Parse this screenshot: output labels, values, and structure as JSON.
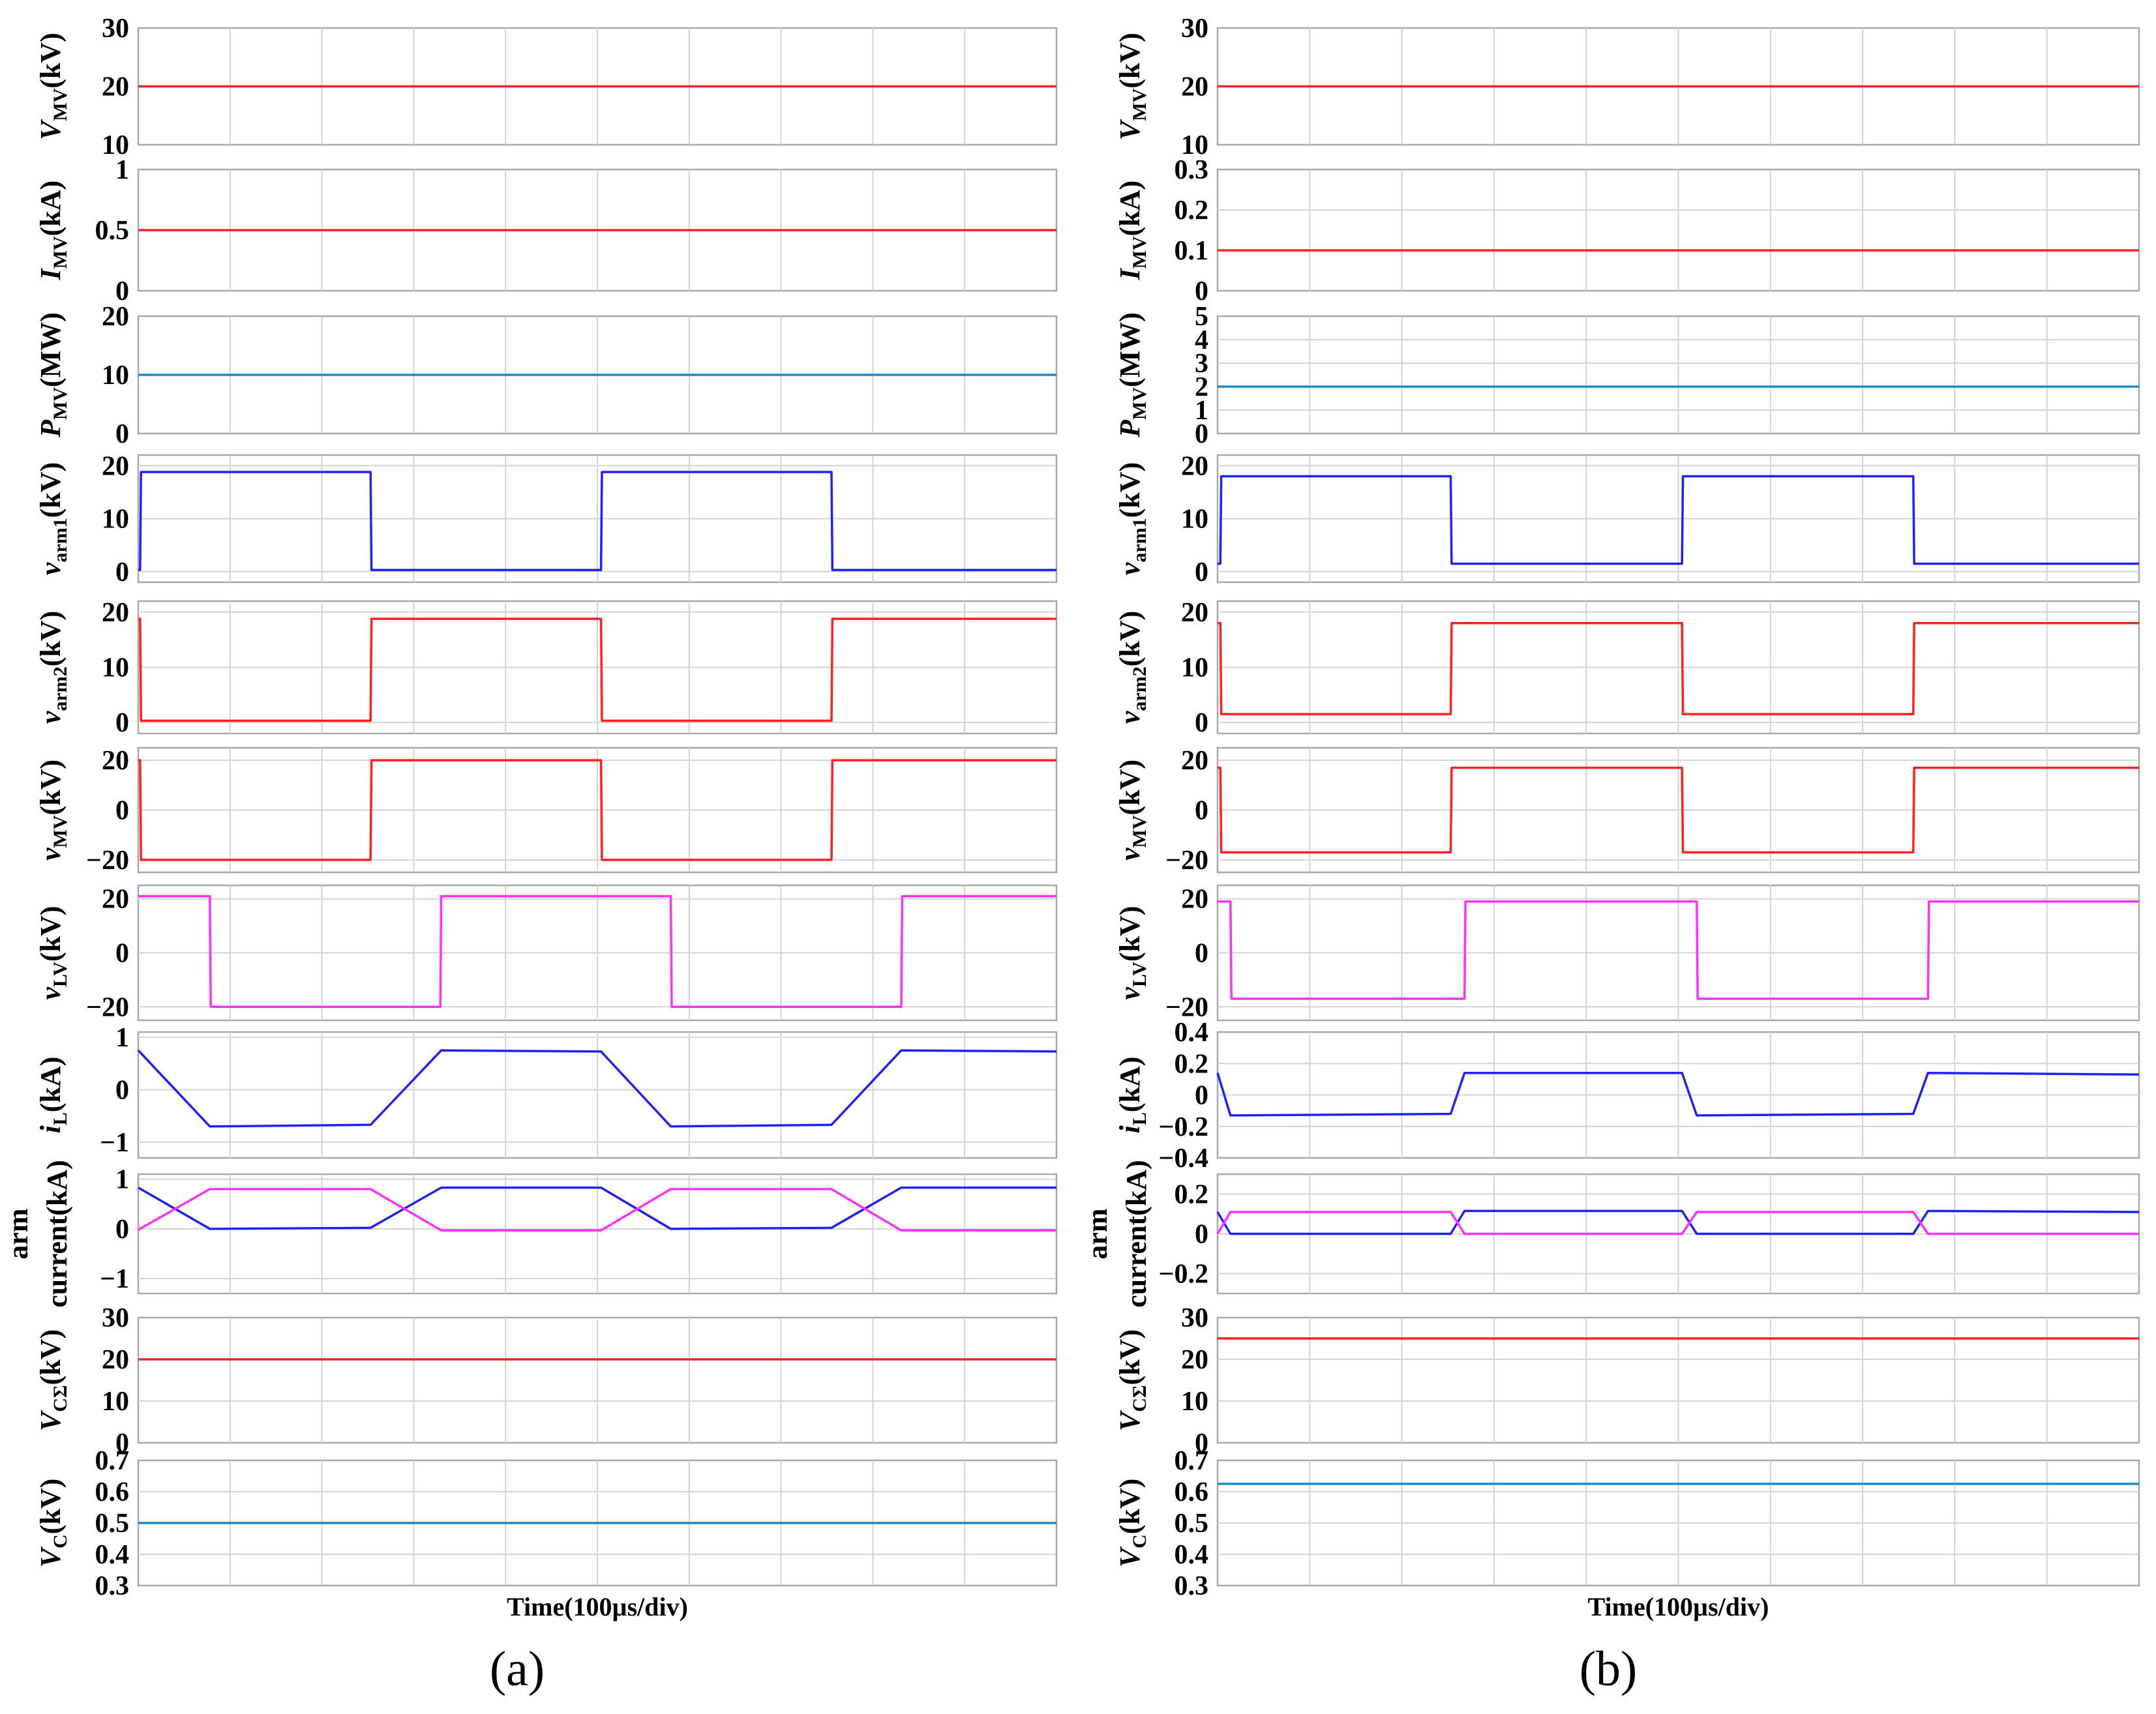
{
  "figure": {
    "xlabel": "Time(100µs/div)",
    "panels": [
      {
        "id": "a",
        "label": "(a)"
      },
      {
        "id": "b",
        "label": "(b)"
      }
    ]
  },
  "colors": {
    "red": "#ff2020",
    "blue": "#2020ff",
    "cyan": "#1a8ccc",
    "magenta": "#ff30ff",
    "frame": "#a8a8a8",
    "grid": "#d4d4d4"
  },
  "chart_data": [
    {
      "type": "line",
      "panel": "a",
      "row": 0,
      "ylabel": {
        "main": "V",
        "sub": "MV",
        "unit": "(kV)"
      },
      "ylim": [
        10,
        30
      ],
      "yticks": [
        10,
        20,
        30
      ],
      "ytick_labels": [
        "10",
        "20",
        "30"
      ],
      "xlim": [
        0,
        1000
      ],
      "xlabel": "",
      "series": [
        {
          "name": "V_MV",
          "color": "red",
          "x": [
            0,
            1000
          ],
          "y": [
            20,
            20
          ]
        }
      ]
    },
    {
      "type": "line",
      "panel": "a",
      "row": 1,
      "ylabel": {
        "main": "I",
        "sub": "MV",
        "unit": "(kA)"
      },
      "ylim": [
        0,
        1
      ],
      "yticks": [
        0,
        0.5,
        1
      ],
      "ytick_labels": [
        "0",
        "0.5",
        "1"
      ],
      "xlim": [
        0,
        1000
      ],
      "xlabel": "",
      "series": [
        {
          "name": "I_MV",
          "color": "red",
          "x": [
            0,
            1000
          ],
          "y": [
            0.5,
            0.5
          ]
        }
      ]
    },
    {
      "type": "line",
      "panel": "a",
      "row": 2,
      "ylabel": {
        "main": "P",
        "sub": "MV",
        "unit": "(MW)"
      },
      "ylim": [
        0,
        20
      ],
      "yticks": [
        0,
        10,
        20
      ],
      "ytick_labels": [
        "0",
        "10",
        "20"
      ],
      "xlim": [
        0,
        1000
      ],
      "xlabel": "",
      "series": [
        {
          "name": "P_MV",
          "color": "cyan",
          "x": [
            0,
            1000
          ],
          "y": [
            10,
            10
          ]
        }
      ]
    },
    {
      "type": "line",
      "panel": "a",
      "row": 3,
      "ylabel": {
        "main": "v",
        "sub": "arm1",
        "unit": "(kV)"
      },
      "ylim": [
        -2,
        22
      ],
      "yticks": [
        0,
        10,
        20
      ],
      "ytick_labels": [
        "0",
        "10",
        "20"
      ],
      "xlim": [
        0,
        1000
      ],
      "xlabel": "",
      "series": [
        {
          "name": "v_arm1",
          "color": "blue",
          "x": [
            0,
            2,
            3,
            253,
            254,
            504,
            505,
            755,
            756,
            1000
          ],
          "y": [
            0.3,
            0.3,
            18.8,
            18.8,
            0.3,
            0.3,
            18.8,
            18.8,
            0.3,
            0.3
          ]
        }
      ]
    },
    {
      "type": "line",
      "panel": "a",
      "row": 4,
      "ylabel": {
        "main": "v",
        "sub": "arm2",
        "unit": "(kV)"
      },
      "ylim": [
        -2,
        22
      ],
      "yticks": [
        0,
        10,
        20
      ],
      "ytick_labels": [
        "0",
        "10",
        "20"
      ],
      "xlim": [
        0,
        1000
      ],
      "xlabel": "",
      "series": [
        {
          "name": "v_arm2",
          "color": "red",
          "x": [
            0,
            2,
            3,
            253,
            254,
            504,
            505,
            755,
            756,
            1000
          ],
          "y": [
            18.8,
            18.8,
            0.3,
            0.3,
            18.8,
            18.8,
            0.3,
            0.3,
            18.8,
            18.8
          ]
        }
      ]
    },
    {
      "type": "line",
      "panel": "a",
      "row": 5,
      "ylabel": {
        "main": "v",
        "sub": "MV",
        "unit": "(kV)"
      },
      "ylim": [
        -25,
        25
      ],
      "yticks": [
        -20,
        0,
        20
      ],
      "ytick_labels": [
        "−20",
        "0",
        "20"
      ],
      "xlim": [
        0,
        1000
      ],
      "xlabel": "",
      "series": [
        {
          "name": "v_MV",
          "color": "red",
          "x": [
            0,
            2,
            3,
            253,
            254,
            504,
            505,
            755,
            756,
            1000
          ],
          "y": [
            20,
            20,
            -20,
            -20,
            20,
            20,
            -20,
            -20,
            20,
            20
          ]
        }
      ]
    },
    {
      "type": "line",
      "panel": "a",
      "row": 6,
      "ylabel": {
        "main": "v",
        "sub": "LV",
        "unit": "(kV)"
      },
      "ylim": [
        -25,
        25
      ],
      "yticks": [
        -20,
        0,
        20
      ],
      "ytick_labels": [
        "−20",
        "0",
        "20"
      ],
      "xlim": [
        0,
        1000
      ],
      "xlabel": "",
      "series": [
        {
          "name": "v_LV",
          "color": "magenta",
          "x": [
            0,
            78,
            79,
            329,
            330,
            580,
            581,
            831,
            832,
            1000
          ],
          "y": [
            21,
            21,
            -20,
            -20,
            21,
            21,
            -20,
            -20,
            21,
            21
          ]
        }
      ]
    },
    {
      "type": "line",
      "panel": "a",
      "row": 7,
      "ylabel": {
        "main": "i",
        "sub": "L",
        "unit": "(kA)"
      },
      "ylim": [
        -1.3,
        1.1
      ],
      "yticks": [
        -1,
        0,
        1
      ],
      "ytick_labels": [
        "−1",
        "0",
        "1"
      ],
      "xlim": [
        0,
        1000
      ],
      "xlabel": "",
      "series": [
        {
          "name": "i_L",
          "color": "blue",
          "x": [
            0,
            78,
            253,
            330,
            504,
            580,
            755,
            831,
            1000
          ],
          "y": [
            0.75,
            -0.7,
            -0.67,
            0.75,
            0.73,
            -0.7,
            -0.67,
            0.75,
            0.73
          ]
        }
      ]
    },
    {
      "type": "line",
      "panel": "a",
      "row": 8,
      "ylabel": {
        "main": "arm",
        "sub": "",
        "unit": "current(kA)"
      },
      "ylim": [
        -1.3,
        1.1
      ],
      "yticks": [
        -1,
        0,
        1
      ],
      "ytick_labels": [
        "−1",
        "0",
        "1"
      ],
      "xlim": [
        0,
        1000
      ],
      "xlabel": "",
      "series": [
        {
          "name": "arm current 1",
          "color": "blue",
          "x": [
            0,
            78,
            253,
            330,
            504,
            580,
            755,
            831,
            1000
          ],
          "y": [
            0.83,
            0.0,
            0.02,
            0.83,
            0.83,
            0.0,
            0.02,
            0.83,
            0.83
          ]
        },
        {
          "name": "arm current 2",
          "color": "magenta",
          "x": [
            0,
            78,
            253,
            330,
            504,
            580,
            755,
            831,
            1000
          ],
          "y": [
            -0.02,
            0.8,
            0.8,
            -0.03,
            -0.03,
            0.8,
            0.8,
            -0.03,
            -0.03
          ]
        }
      ]
    },
    {
      "type": "line",
      "panel": "a",
      "row": 9,
      "ylabel": {
        "main": "V",
        "sub": "CΣ",
        "unit": "(kV)"
      },
      "ylim": [
        0,
        30
      ],
      "yticks": [
        0,
        10,
        20,
        30
      ],
      "ytick_labels": [
        "0",
        "10",
        "20",
        "30"
      ],
      "xlim": [
        0,
        1000
      ],
      "xlabel": "",
      "series": [
        {
          "name": "V_CΣ",
          "color": "red",
          "x": [
            0,
            1000
          ],
          "y": [
            20,
            20
          ]
        }
      ]
    },
    {
      "type": "line",
      "panel": "a",
      "row": 10,
      "ylabel": {
        "main": "V",
        "sub": "C",
        "unit": "(kV)"
      },
      "ylim": [
        0.3,
        0.7
      ],
      "yticks": [
        0.3,
        0.4,
        0.5,
        0.6,
        0.7
      ],
      "ytick_labels": [
        "0.3",
        "0.4",
        "0.5",
        "0.6",
        "0.7"
      ],
      "xlim": [
        0,
        1000
      ],
      "xlabel": "Time(100µs/div)",
      "series": [
        {
          "name": "V_C",
          "color": "cyan",
          "x": [
            0,
            1000
          ],
          "y": [
            0.5,
            0.5
          ]
        }
      ]
    },
    {
      "type": "line",
      "panel": "b",
      "row": 0,
      "ylabel": {
        "main": "V",
        "sub": "MV",
        "unit": "(kV)"
      },
      "ylim": [
        10,
        30
      ],
      "yticks": [
        10,
        20,
        30
      ],
      "ytick_labels": [
        "10",
        "20",
        "30"
      ],
      "xlim": [
        0,
        1000
      ],
      "xlabel": "",
      "series": [
        {
          "name": "V_MV",
          "color": "red",
          "x": [
            0,
            1000
          ],
          "y": [
            20,
            20
          ]
        }
      ]
    },
    {
      "type": "line",
      "panel": "b",
      "row": 1,
      "ylabel": {
        "main": "I",
        "sub": "MV",
        "unit": "(kA)"
      },
      "ylim": [
        0,
        0.3
      ],
      "yticks": [
        0,
        0.1,
        0.2,
        0.3
      ],
      "ytick_labels": [
        "0",
        "0.1",
        "0.2",
        "0.3"
      ],
      "xlim": [
        0,
        1000
      ],
      "xlabel": "",
      "series": [
        {
          "name": "I_MV",
          "color": "red",
          "x": [
            0,
            1000
          ],
          "y": [
            0.1,
            0.1
          ]
        }
      ]
    },
    {
      "type": "line",
      "panel": "b",
      "row": 2,
      "ylabel": {
        "main": "P",
        "sub": "MV",
        "unit": "(MW)"
      },
      "ylim": [
        0,
        5
      ],
      "yticks": [
        0,
        1,
        2,
        3,
        4,
        5
      ],
      "ytick_labels": [
        "0",
        "1",
        "2",
        "3",
        "4",
        "5"
      ],
      "xlim": [
        0,
        1000
      ],
      "xlabel": "",
      "series": [
        {
          "name": "P_MV",
          "color": "cyan",
          "x": [
            0,
            1000
          ],
          "y": [
            2,
            2
          ]
        }
      ]
    },
    {
      "type": "line",
      "panel": "b",
      "row": 3,
      "ylabel": {
        "main": "v",
        "sub": "arm1",
        "unit": "(kV)"
      },
      "ylim": [
        -2,
        22
      ],
      "yticks": [
        0,
        10,
        20
      ],
      "ytick_labels": [
        "0",
        "10",
        "20"
      ],
      "xlim": [
        0,
        1000
      ],
      "xlabel": "",
      "series": [
        {
          "name": "v_arm1",
          "color": "blue",
          "x": [
            0,
            3,
            4,
            253,
            254,
            504,
            505,
            755,
            756,
            1000
          ],
          "y": [
            1.5,
            1.5,
            18,
            18,
            1.5,
            1.5,
            18,
            18,
            1.5,
            1.5
          ]
        }
      ]
    },
    {
      "type": "line",
      "panel": "b",
      "row": 4,
      "ylabel": {
        "main": "v",
        "sub": "arm2",
        "unit": "(kV)"
      },
      "ylim": [
        -2,
        22
      ],
      "yticks": [
        0,
        10,
        20
      ],
      "ytick_labels": [
        "0",
        "10",
        "20"
      ],
      "xlim": [
        0,
        1000
      ],
      "xlabel": "",
      "series": [
        {
          "name": "v_arm2",
          "color": "red",
          "x": [
            0,
            3,
            4,
            253,
            254,
            504,
            505,
            755,
            756,
            1000
          ],
          "y": [
            18,
            18,
            1.5,
            1.5,
            18,
            18,
            1.5,
            1.5,
            18,
            18
          ]
        }
      ]
    },
    {
      "type": "line",
      "panel": "b",
      "row": 5,
      "ylabel": {
        "main": "v",
        "sub": "MV",
        "unit": "(kV)"
      },
      "ylim": [
        -25,
        25
      ],
      "yticks": [
        -20,
        0,
        20
      ],
      "ytick_labels": [
        "−20",
        "0",
        "20"
      ],
      "xlim": [
        0,
        1000
      ],
      "xlabel": "",
      "series": [
        {
          "name": "v_MV",
          "color": "red",
          "x": [
            0,
            3,
            4,
            253,
            254,
            504,
            505,
            755,
            756,
            1000
          ],
          "y": [
            17,
            17,
            -17,
            -17,
            17,
            17,
            -17,
            -17,
            17,
            17
          ]
        }
      ]
    },
    {
      "type": "line",
      "panel": "b",
      "row": 6,
      "ylabel": {
        "main": "v",
        "sub": "LV",
        "unit": "(kV)"
      },
      "ylim": [
        -25,
        25
      ],
      "yticks": [
        -20,
        0,
        20
      ],
      "ytick_labels": [
        "−20",
        "0",
        "20"
      ],
      "xlim": [
        0,
        1000
      ],
      "xlabel": "",
      "series": [
        {
          "name": "v_LV",
          "color": "magenta",
          "x": [
            0,
            14,
            15,
            268,
            269,
            520,
            521,
            771,
            772,
            1000
          ],
          "y": [
            19,
            19,
            -17,
            -17,
            19,
            19,
            -17,
            -17,
            19,
            19
          ]
        }
      ]
    },
    {
      "type": "line",
      "panel": "b",
      "row": 7,
      "ylabel": {
        "main": "i",
        "sub": "L",
        "unit": "(kA)"
      },
      "ylim": [
        -0.4,
        0.4
      ],
      "yticks": [
        -0.4,
        -0.2,
        0,
        0.2,
        0.4
      ],
      "ytick_labels": [
        "−0.4",
        "−0.2",
        "0",
        "0.2",
        "0.4"
      ],
      "xlim": [
        0,
        1000
      ],
      "xlabel": "",
      "series": [
        {
          "name": "i_L",
          "color": "blue",
          "x": [
            0,
            14,
            253,
            268,
            504,
            520,
            755,
            771,
            1000
          ],
          "y": [
            0.14,
            -0.13,
            -0.12,
            0.14,
            0.14,
            -0.13,
            -0.12,
            0.14,
            0.13
          ]
        }
      ]
    },
    {
      "type": "line",
      "panel": "b",
      "row": 8,
      "ylabel": {
        "main": "arm",
        "sub": "",
        "unit": "current(kA)"
      },
      "ylim": [
        -0.3,
        0.3
      ],
      "yticks": [
        -0.2,
        0,
        0.2
      ],
      "ytick_labels": [
        "−0.2",
        "0",
        "0.2"
      ],
      "xlim": [
        0,
        1000
      ],
      "xlabel": "",
      "series": [
        {
          "name": "arm current 1",
          "color": "blue",
          "x": [
            0,
            14,
            253,
            268,
            504,
            520,
            755,
            771,
            1000
          ],
          "y": [
            0.11,
            0.0,
            0.0,
            0.115,
            0.115,
            0.0,
            0.0,
            0.115,
            0.11
          ]
        },
        {
          "name": "arm current 2",
          "color": "magenta",
          "x": [
            0,
            14,
            253,
            268,
            504,
            520,
            755,
            771,
            1000
          ],
          "y": [
            0.0,
            0.11,
            0.11,
            0.0,
            0.0,
            0.11,
            0.11,
            0.0,
            0.0
          ]
        }
      ]
    },
    {
      "type": "line",
      "panel": "b",
      "row": 9,
      "ylabel": {
        "main": "V",
        "sub": "CΣ",
        "unit": "(kV)"
      },
      "ylim": [
        0,
        30
      ],
      "yticks": [
        0,
        10,
        20,
        30
      ],
      "ytick_labels": [
        "0",
        "10",
        "20",
        "30"
      ],
      "xlim": [
        0,
        1000
      ],
      "xlabel": "",
      "series": [
        {
          "name": "V_CΣ",
          "color": "red",
          "x": [
            0,
            1000
          ],
          "y": [
            25,
            25
          ]
        }
      ]
    },
    {
      "type": "line",
      "panel": "b",
      "row": 10,
      "ylabel": {
        "main": "V",
        "sub": "C",
        "unit": "(kV)"
      },
      "ylim": [
        0.3,
        0.7
      ],
      "yticks": [
        0.3,
        0.4,
        0.5,
        0.6,
        0.7
      ],
      "ytick_labels": [
        "0.3",
        "0.4",
        "0.5",
        "0.6",
        "0.7"
      ],
      "xlim": [
        0,
        1000
      ],
      "xlabel": "Time(100µs/div)",
      "series": [
        {
          "name": "V_C",
          "color": "cyan",
          "x": [
            0,
            1000
          ],
          "y": [
            0.625,
            0.625
          ]
        }
      ]
    }
  ]
}
